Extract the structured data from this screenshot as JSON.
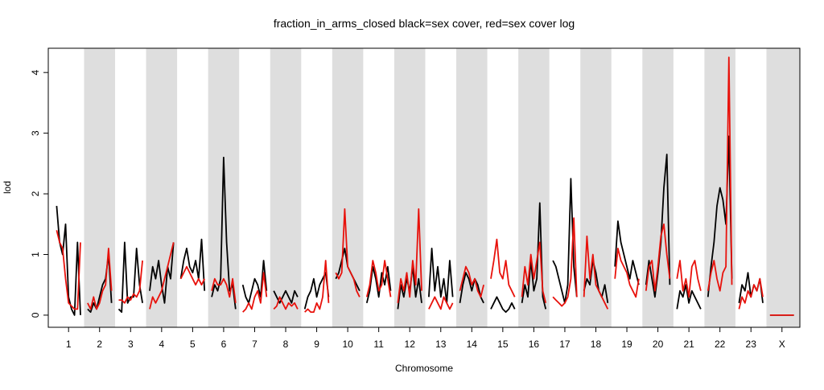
{
  "chart_data": {
    "type": "line",
    "title": "fraction_in_arms_closed black=sex cover, red=sex cover log",
    "xlabel": "Chromosome",
    "ylabel": "lod",
    "ylim": [
      0,
      4.4
    ],
    "yticks": [
      0,
      1,
      2,
      3,
      4
    ],
    "background_bands": "alternating grey",
    "chromosomes": [
      {
        "label": "1",
        "x": [
          0,
          1
        ],
        "black": [
          1.8,
          1.2,
          1.0,
          1.5,
          0.3,
          0.1,
          0.0,
          1.2,
          0.0
        ],
        "red": [
          1.4,
          1.2,
          1.1,
          0.6,
          0.2,
          0.15,
          0.1,
          0.1,
          1.2
        ]
      },
      {
        "label": "2",
        "x": [
          1.3,
          2.3
        ],
        "black": [
          0.1,
          0.05,
          0.2,
          0.1,
          0.3,
          0.5,
          0.6,
          1.0,
          0.2
        ],
        "red": [
          0.2,
          0.1,
          0.3,
          0.1,
          0.2,
          0.4,
          0.5,
          1.1,
          0.4
        ]
      },
      {
        "label": "3",
        "x": [
          2.6,
          3.6
        ],
        "black": [
          0.1,
          0.05,
          1.2,
          0.2,
          0.3,
          0.3,
          1.1,
          0.5,
          0.2
        ],
        "red": [
          0.25,
          0.25,
          0.2,
          0.3,
          0.25,
          0.35,
          0.3,
          0.4,
          0.9
        ]
      },
      {
        "label": "4",
        "x": [
          3.9,
          4.9
        ],
        "black": [
          0.4,
          0.8,
          0.6,
          0.9,
          0.5,
          0.2,
          0.8,
          0.6,
          1.2
        ],
        "red": [
          0.1,
          0.3,
          0.2,
          0.3,
          0.4,
          0.6,
          0.8,
          1.0,
          1.2
        ]
      },
      {
        "label": "5",
        "x": [
          5.2,
          6.2
        ],
        "black": [
          0.6,
          0.9,
          1.1,
          0.8,
          0.7,
          0.9,
          0.6,
          1.25,
          0.4
        ],
        "red": [
          0.6,
          0.7,
          0.8,
          0.7,
          0.6,
          0.5,
          0.6,
          0.5,
          0.6
        ]
      },
      {
        "label": "6",
        "x": [
          6.5,
          7.5
        ],
        "black": [
          0.3,
          0.5,
          0.4,
          0.6,
          2.6,
          1.2,
          0.4,
          0.5,
          0.1
        ],
        "red": [
          0.4,
          0.6,
          0.5,
          0.5,
          0.6,
          0.5,
          0.3,
          0.6,
          0.2
        ]
      },
      {
        "label": "7",
        "x": [
          7.8,
          8.8
        ],
        "black": [
          0.5,
          0.3,
          0.2,
          0.4,
          0.6,
          0.5,
          0.3,
          0.9,
          0.4
        ],
        "red": [
          0.05,
          0.1,
          0.2,
          0.1,
          0.3,
          0.4,
          0.2,
          0.7,
          0.3
        ]
      },
      {
        "label": "8",
        "x": [
          9.1,
          10.1
        ],
        "black": [
          0.4,
          0.3,
          0.2,
          0.3,
          0.4,
          0.3,
          0.2,
          0.4,
          0.3
        ],
        "red": [
          0.1,
          0.15,
          0.3,
          0.2,
          0.1,
          0.2,
          0.15,
          0.2,
          0.1
        ]
      },
      {
        "label": "9",
        "x": [
          10.4,
          11.4
        ],
        "black": [
          0.1,
          0.3,
          0.4,
          0.6,
          0.3,
          0.5,
          0.6,
          0.7,
          0.3
        ],
        "red": [
          0.05,
          0.1,
          0.05,
          0.05,
          0.2,
          0.1,
          0.3,
          0.9,
          0.2
        ]
      },
      {
        "label": "10",
        "x": [
          11.7,
          12.7
        ],
        "black": [
          0.6,
          0.7,
          0.9,
          1.1,
          0.8,
          0.7,
          0.6,
          0.5,
          0.4
        ],
        "red": [
          0.7,
          0.6,
          0.7,
          1.75,
          0.8,
          0.7,
          0.6,
          0.4,
          0.3
        ]
      },
      {
        "label": "11",
        "x": [
          13.0,
          14.0
        ],
        "black": [
          0.2,
          0.4,
          0.8,
          0.6,
          0.3,
          0.7,
          0.5,
          0.8,
          0.4
        ],
        "red": [
          0.3,
          0.5,
          0.9,
          0.7,
          0.4,
          0.5,
          0.9,
          0.6,
          0.3
        ]
      },
      {
        "label": "12",
        "x": [
          14.3,
          15.3
        ],
        "black": [
          0.1,
          0.5,
          0.3,
          0.6,
          0.4,
          0.8,
          0.3,
          0.6,
          0.2
        ],
        "red": [
          0.2,
          0.6,
          0.4,
          0.7,
          0.3,
          0.9,
          0.5,
          1.75,
          0.4
        ]
      },
      {
        "label": "13",
        "x": [
          15.6,
          16.6
        ],
        "black": [
          0.3,
          1.1,
          0.4,
          0.8,
          0.3,
          0.6,
          0.2,
          0.9,
          0.3
        ],
        "red": [
          0.1,
          0.2,
          0.3,
          0.2,
          0.1,
          0.3,
          0.2,
          0.1,
          0.2
        ]
      },
      {
        "label": "14",
        "x": [
          16.9,
          17.9
        ],
        "black": [
          0.2,
          0.5,
          0.7,
          0.6,
          0.4,
          0.6,
          0.5,
          0.3,
          0.2
        ],
        "red": [
          0.4,
          0.6,
          0.8,
          0.7,
          0.5,
          0.6,
          0.4,
          0.3,
          0.5
        ]
      },
      {
        "label": "15",
        "x": [
          18.2,
          19.2
        ],
        "black": [
          0.1,
          0.2,
          0.3,
          0.2,
          0.1,
          0.05,
          0.1,
          0.2,
          0.1
        ],
        "red": [
          0.6,
          0.9,
          1.25,
          0.7,
          0.6,
          0.9,
          0.5,
          0.4,
          0.3
        ]
      },
      {
        "label": "16",
        "x": [
          19.5,
          20.5
        ],
        "black": [
          0.2,
          0.5,
          0.3,
          0.9,
          0.4,
          0.6,
          1.85,
          0.3,
          0.1
        ],
        "red": [
          0.3,
          0.8,
          0.5,
          1.0,
          0.6,
          0.9,
          1.2,
          0.4,
          0.2
        ]
      },
      {
        "label": "17",
        "x": [
          20.8,
          21.8
        ],
        "black": [
          0.9,
          0.8,
          0.6,
          0.4,
          0.2,
          0.5,
          2.25,
          0.8,
          0.3
        ],
        "red": [
          0.3,
          0.25,
          0.2,
          0.15,
          0.2,
          0.3,
          0.6,
          1.6,
          0.3
        ]
      },
      {
        "label": "18",
        "x": [
          22.1,
          23.1
        ],
        "black": [
          0.4,
          0.6,
          0.5,
          0.9,
          0.7,
          0.4,
          0.3,
          0.5,
          0.2
        ],
        "red": [
          0.3,
          1.3,
          0.6,
          1.0,
          0.5,
          0.4,
          0.3,
          0.2,
          0.1
        ]
      },
      {
        "label": "19",
        "x": [
          23.4,
          24.4
        ],
        "black": [
          0.8,
          1.55,
          1.2,
          1.0,
          0.8,
          0.6,
          0.9,
          0.7,
          0.5
        ],
        "red": [
          0.6,
          1.1,
          0.9,
          0.8,
          0.7,
          0.5,
          0.4,
          0.3,
          0.6
        ]
      },
      {
        "label": "20",
        "x": [
          24.7,
          25.7
        ],
        "black": [
          0.5,
          0.9,
          0.6,
          0.3,
          0.7,
          1.2,
          2.1,
          2.65,
          0.5
        ],
        "red": [
          0.4,
          0.8,
          0.9,
          0.4,
          0.8,
          1.3,
          1.5,
          1.0,
          0.6
        ]
      },
      {
        "label": "21",
        "x": [
          26.0,
          27.0
        ],
        "black": [
          0.1,
          0.4,
          0.3,
          0.5,
          0.2,
          0.4,
          0.3,
          0.2,
          0.1
        ],
        "red": [
          0.6,
          0.9,
          0.4,
          0.6,
          0.3,
          0.8,
          0.9,
          0.6,
          0.4
        ]
      },
      {
        "label": "22",
        "x": [
          27.3,
          28.3
        ],
        "black": [
          0.3,
          0.8,
          1.2,
          1.8,
          2.1,
          1.9,
          1.5,
          2.95,
          0.6
        ],
        "red": [
          0.4,
          0.7,
          0.9,
          0.6,
          0.4,
          0.7,
          0.8,
          4.25,
          0.5
        ]
      },
      {
        "label": "23",
        "x": [
          28.6,
          29.6
        ],
        "black": [
          0.2,
          0.5,
          0.4,
          0.7,
          0.3,
          0.5,
          0.4,
          0.6,
          0.2
        ],
        "red": [
          0.1,
          0.3,
          0.2,
          0.4,
          0.3,
          0.5,
          0.4,
          0.6,
          0.3
        ]
      },
      {
        "label": "X",
        "x": [
          29.9,
          30.9
        ],
        "black": [
          0.0,
          0.0
        ],
        "red": [
          0.0,
          0.0
        ]
      }
    ]
  }
}
